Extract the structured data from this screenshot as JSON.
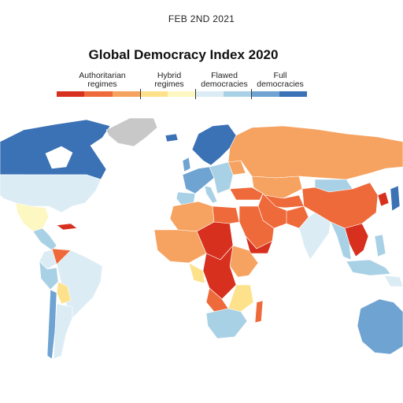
{
  "header": {
    "date": "FEB 2ND 2021",
    "title": "Global Democracy Index 2020"
  },
  "legend": {
    "categories": [
      {
        "line1": "Authoritarian",
        "line2": "regimes"
      },
      {
        "line1": "Hybrid",
        "line2": "regimes"
      },
      {
        "line1": "Flawed",
        "line2": "democracies"
      },
      {
        "line1": "Full",
        "line2": "democracies"
      }
    ],
    "colors": [
      "#d7301f",
      "#ee6a3a",
      "#f6a260",
      "#fde28b",
      "#fdf7c2",
      "#dcecf5",
      "#a9d1e6",
      "#6ea3d2",
      "#3b71b5"
    ]
  },
  "map": {
    "no_data_color": "#c8c8c8",
    "border_color": "#ffffff"
  }
}
